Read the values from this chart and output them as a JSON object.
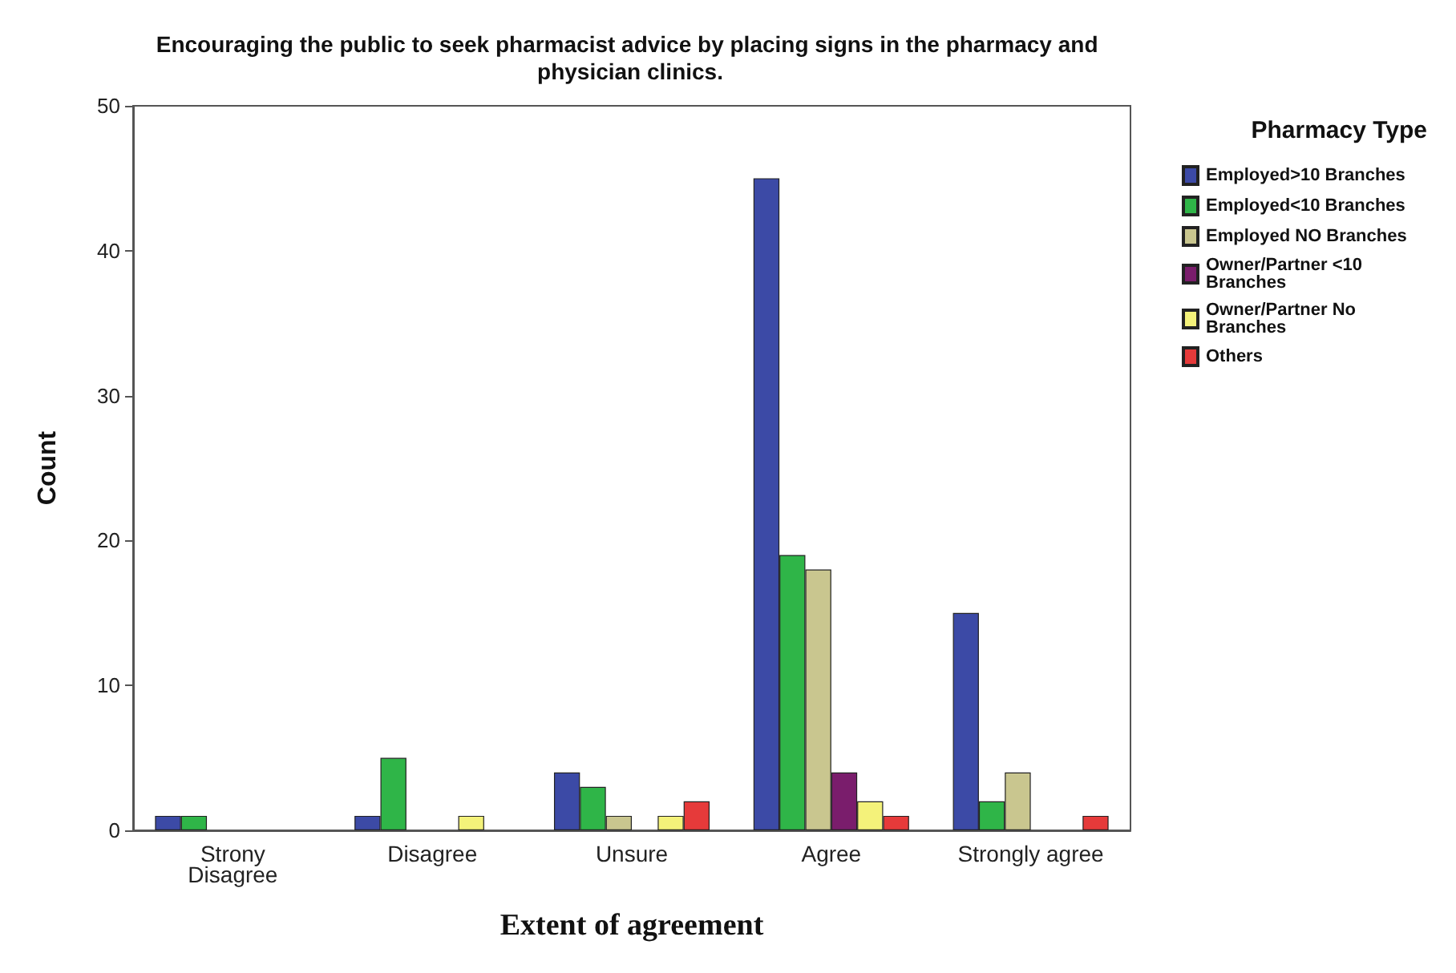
{
  "chart_data": {
    "type": "bar",
    "title": "Encouraging the public to seek pharmacist advice by placing signs in the pharmacy and physician clinics.",
    "xlabel": "Extent of agreement",
    "ylabel": "Count",
    "legend_title": "Pharmacy Type",
    "legend": "right",
    "grid": false,
    "categories": [
      "Strony\nDisagree",
      "Disagree",
      "Unsure",
      "Agree",
      "Strongly agree"
    ],
    "ylim": [
      0,
      50
    ],
    "yticks": [
      0,
      10,
      20,
      30,
      40,
      50
    ],
    "series": [
      {
        "name": "Employed>10 Branches",
        "color": "#3c4aa6",
        "values": [
          1,
          1,
          4,
          45,
          15
        ]
      },
      {
        "name": "Employed<10 Branches",
        "color": "#2fb548",
        "values": [
          1,
          5,
          3,
          19,
          2
        ]
      },
      {
        "name": "Employed NO Branches",
        "color": "#c9c68f",
        "values": [
          null,
          null,
          1,
          18,
          4
        ]
      },
      {
        "name": "Owner/Partner <10 Branches",
        "color": "#7a1d6c",
        "values": [
          null,
          null,
          null,
          4,
          null
        ]
      },
      {
        "name": "Owner/Partner No Branches",
        "color": "#f4f27a",
        "values": [
          null,
          1,
          1,
          2,
          null
        ]
      },
      {
        "name": "Others",
        "color": "#e63a3a",
        "values": [
          null,
          null,
          2,
          1,
          1
        ]
      }
    ]
  }
}
